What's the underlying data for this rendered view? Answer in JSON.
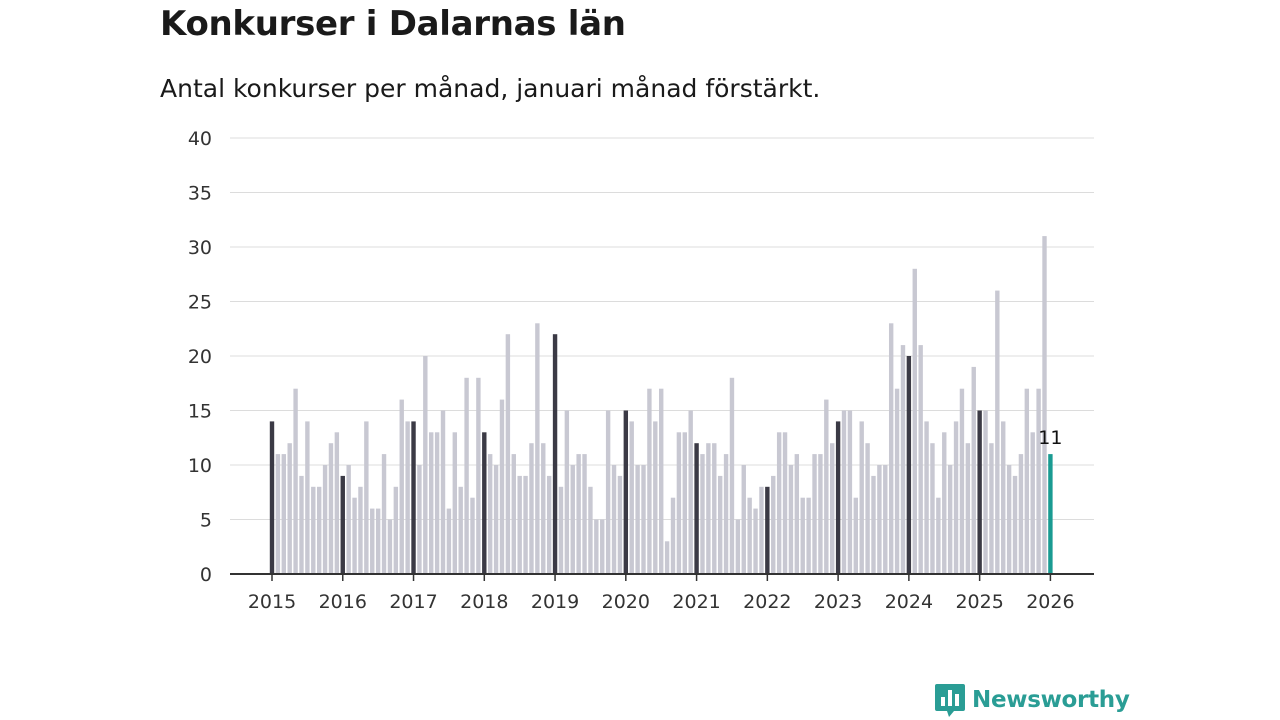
{
  "chart_data": {
    "type": "bar",
    "title": "Konkurser i Dalarnas län",
    "subtitle": "Antal konkurser per månad, januari månad förstärkt.",
    "xlabel": "",
    "ylabel": "",
    "ylim": [
      0,
      40
    ],
    "yticks": [
      "0",
      "5",
      "10",
      "15",
      "20",
      "25",
      "30",
      "35",
      "40"
    ],
    "xticks": [
      "2015",
      "2016",
      "2017",
      "2018",
      "2019",
      "2020",
      "2021",
      "2022",
      "2023",
      "2024",
      "2025",
      "2026"
    ],
    "grid": true,
    "legend": "none",
    "start": "2015-01",
    "last_label": "11",
    "values": [
      14,
      11,
      11,
      12,
      17,
      9,
      14,
      8,
      8,
      10,
      12,
      13,
      9,
      10,
      7,
      8,
      14,
      6,
      6,
      11,
      5,
      8,
      16,
      14,
      14,
      10,
      20,
      13,
      13,
      15,
      6,
      13,
      8,
      18,
      7,
      18,
      13,
      11,
      10,
      16,
      22,
      11,
      9,
      9,
      12,
      23,
      12,
      9,
      22,
      8,
      15,
      10,
      11,
      11,
      8,
      5,
      5,
      15,
      10,
      9,
      15,
      14,
      10,
      10,
      17,
      14,
      17,
      3,
      7,
      13,
      13,
      15,
      12,
      11,
      12,
      12,
      9,
      11,
      18,
      5,
      10,
      7,
      6,
      8,
      8,
      9,
      13,
      13,
      10,
      11,
      7,
      7,
      11,
      11,
      16,
      12,
      14,
      15,
      15,
      7,
      14,
      12,
      9,
      10,
      10,
      23,
      17,
      21,
      20,
      28,
      21,
      14,
      12,
      7,
      13,
      10,
      14,
      17,
      12,
      19,
      15,
      15,
      12,
      26,
      14,
      10,
      9,
      11,
      17,
      13,
      17,
      31,
      11
    ],
    "colors": {
      "regular": "#c8c8d2",
      "january": "#3b3a45",
      "latest": "#1a9b92",
      "grid": "#dcdcdc",
      "axis": "#333333"
    }
  },
  "brand": {
    "name": "Newsworthy",
    "icon": "newsworthy-logo-icon",
    "color": "#2a9d95"
  }
}
